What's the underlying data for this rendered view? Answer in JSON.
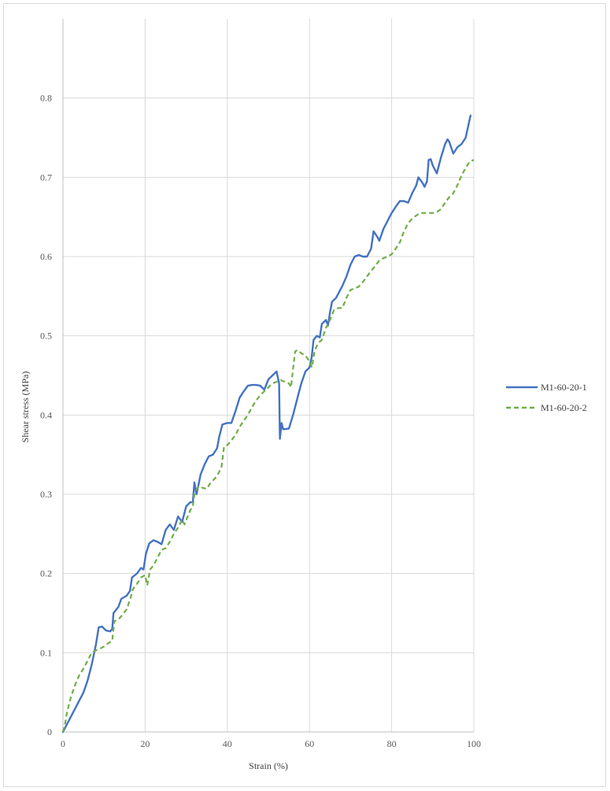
{
  "chart_data": {
    "type": "line",
    "title": "",
    "xlabel": "Strain (%)",
    "ylabel": "Shear stress (MPa)",
    "xlim": [
      0,
      100
    ],
    "ylim": [
      0,
      0.9
    ],
    "x_ticks": [
      0,
      20,
      40,
      60,
      80,
      100
    ],
    "y_ticks": [
      0,
      0.1,
      0.2,
      0.3,
      0.4,
      0.5,
      0.6,
      0.7,
      0.8
    ],
    "y_tick_labels": [
      "0",
      "0.1",
      "0.2",
      "0.3",
      "0.4",
      "0.5",
      "0.6",
      "0.7",
      "0.8"
    ],
    "grid": true,
    "legend_position": "right",
    "series": [
      {
        "name": "M1-60-20-1",
        "color": "#4472c4",
        "dash": "solid",
        "points": [
          [
            0,
            0
          ],
          [
            1,
            0.01
          ],
          [
            2,
            0.02
          ],
          [
            3,
            0.03
          ],
          [
            4,
            0.04
          ],
          [
            5,
            0.05
          ],
          [
            6,
            0.065
          ],
          [
            7,
            0.085
          ],
          [
            8,
            0.11
          ],
          [
            8.7,
            0.132
          ],
          [
            9.5,
            0.133
          ],
          [
            10.5,
            0.128
          ],
          [
            11.5,
            0.127
          ],
          [
            12,
            0.13
          ],
          [
            12.3,
            0.15
          ],
          [
            13.5,
            0.158
          ],
          [
            14.2,
            0.168
          ],
          [
            15.5,
            0.172
          ],
          [
            16.3,
            0.178
          ],
          [
            16.8,
            0.195
          ],
          [
            18,
            0.2
          ],
          [
            19,
            0.207
          ],
          [
            19.6,
            0.205
          ],
          [
            20.2,
            0.225
          ],
          [
            21,
            0.238
          ],
          [
            22,
            0.242
          ],
          [
            23,
            0.24
          ],
          [
            24,
            0.237
          ],
          [
            25,
            0.255
          ],
          [
            26,
            0.262
          ],
          [
            27,
            0.255
          ],
          [
            28,
            0.272
          ],
          [
            29,
            0.265
          ],
          [
            30,
            0.285
          ],
          [
            31,
            0.29
          ],
          [
            31.6,
            0.29
          ],
          [
            32,
            0.315
          ],
          [
            32.5,
            0.3
          ],
          [
            33.5,
            0.325
          ],
          [
            34.5,
            0.338
          ],
          [
            35.5,
            0.348
          ],
          [
            36.5,
            0.35
          ],
          [
            37.5,
            0.358
          ],
          [
            38,
            0.372
          ],
          [
            38.8,
            0.388
          ],
          [
            40,
            0.39
          ],
          [
            41,
            0.39
          ],
          [
            42,
            0.405
          ],
          [
            43,
            0.422
          ],
          [
            44,
            0.43
          ],
          [
            45,
            0.437
          ],
          [
            46,
            0.438
          ],
          [
            47,
            0.438
          ],
          [
            48,
            0.437
          ],
          [
            49,
            0.432
          ],
          [
            50,
            0.445
          ],
          [
            51,
            0.45
          ],
          [
            52,
            0.455
          ],
          [
            52.6,
            0.44
          ],
          [
            52.8,
            0.37
          ],
          [
            53.2,
            0.39
          ],
          [
            53.6,
            0.382
          ],
          [
            55,
            0.383
          ],
          [
            56,
            0.4
          ],
          [
            57,
            0.42
          ],
          [
            58,
            0.44
          ],
          [
            59,
            0.455
          ],
          [
            60,
            0.46
          ],
          [
            60.5,
            0.472
          ],
          [
            61,
            0.495
          ],
          [
            61.8,
            0.5
          ],
          [
            62.5,
            0.498
          ],
          [
            63,
            0.515
          ],
          [
            64,
            0.52
          ],
          [
            64.5,
            0.513
          ],
          [
            65,
            0.53
          ],
          [
            65.5,
            0.543
          ],
          [
            66.5,
            0.548
          ],
          [
            68,
            0.563
          ],
          [
            69,
            0.575
          ],
          [
            70,
            0.59
          ],
          [
            71,
            0.6
          ],
          [
            72,
            0.602
          ],
          [
            73,
            0.6
          ],
          [
            74,
            0.6
          ],
          [
            75,
            0.61
          ],
          [
            75.6,
            0.632
          ],
          [
            76.5,
            0.625
          ],
          [
            77,
            0.62
          ],
          [
            78,
            0.635
          ],
          [
            79,
            0.645
          ],
          [
            80,
            0.655
          ],
          [
            81,
            0.663
          ],
          [
            82,
            0.67
          ],
          [
            83,
            0.67
          ],
          [
            84,
            0.668
          ],
          [
            85,
            0.68
          ],
          [
            86,
            0.69
          ],
          [
            86.5,
            0.7
          ],
          [
            87.5,
            0.693
          ],
          [
            88,
            0.688
          ],
          [
            88.6,
            0.695
          ],
          [
            89,
            0.722
          ],
          [
            89.5,
            0.723
          ],
          [
            90,
            0.715
          ],
          [
            91,
            0.705
          ],
          [
            92,
            0.725
          ],
          [
            93,
            0.742
          ],
          [
            93.6,
            0.748
          ],
          [
            94,
            0.745
          ],
          [
            95,
            0.73
          ],
          [
            96,
            0.738
          ],
          [
            97,
            0.742
          ],
          [
            98,
            0.75
          ],
          [
            99.2,
            0.778
          ]
        ]
      },
      {
        "name": "M1-60-20-2",
        "color": "#70ad47",
        "dash": "dashed",
        "points": [
          [
            0,
            0
          ],
          [
            0.5,
            0.01
          ],
          [
            1,
            0.025
          ],
          [
            2,
            0.045
          ],
          [
            3,
            0.06
          ],
          [
            4,
            0.072
          ],
          [
            5,
            0.08
          ],
          [
            6,
            0.09
          ],
          [
            7,
            0.1
          ],
          [
            8,
            0.103
          ],
          [
            9,
            0.105
          ],
          [
            10,
            0.108
          ],
          [
            11,
            0.112
          ],
          [
            12,
            0.115
          ],
          [
            12.5,
            0.14
          ],
          [
            13.5,
            0.142
          ],
          [
            14.5,
            0.148
          ],
          [
            15.5,
            0.155
          ],
          [
            16.5,
            0.17
          ],
          [
            17,
            0.18
          ],
          [
            18,
            0.187
          ],
          [
            19,
            0.195
          ],
          [
            20,
            0.198
          ],
          [
            20.5,
            0.185
          ],
          [
            21.2,
            0.205
          ],
          [
            22,
            0.21
          ],
          [
            23,
            0.22
          ],
          [
            24,
            0.23
          ],
          [
            25,
            0.232
          ],
          [
            26,
            0.24
          ],
          [
            27,
            0.25
          ],
          [
            28,
            0.258
          ],
          [
            29,
            0.268
          ],
          [
            29.6,
            0.262
          ],
          [
            30.2,
            0.27
          ],
          [
            31,
            0.28
          ],
          [
            31.6,
            0.285
          ],
          [
            32,
            0.3
          ],
          [
            33,
            0.31
          ],
          [
            34,
            0.308
          ],
          [
            35,
            0.307
          ],
          [
            36,
            0.315
          ],
          [
            37,
            0.32
          ],
          [
            38,
            0.328
          ],
          [
            38.6,
            0.335
          ],
          [
            39.2,
            0.36
          ],
          [
            40,
            0.362
          ],
          [
            41,
            0.368
          ],
          [
            42,
            0.375
          ],
          [
            43,
            0.385
          ],
          [
            44,
            0.393
          ],
          [
            45,
            0.4
          ],
          [
            46,
            0.41
          ],
          [
            47,
            0.418
          ],
          [
            48,
            0.425
          ],
          [
            49,
            0.43
          ],
          [
            50,
            0.435
          ],
          [
            51,
            0.44
          ],
          [
            52,
            0.442
          ],
          [
            53,
            0.444
          ],
          [
            54,
            0.442
          ],
          [
            55,
            0.44
          ],
          [
            55.5,
            0.435
          ],
          [
            56,
            0.458
          ],
          [
            56.5,
            0.48
          ],
          [
            57,
            0.482
          ],
          [
            58,
            0.478
          ],
          [
            59,
            0.475
          ],
          [
            60,
            0.468
          ],
          [
            60.6,
            0.46
          ],
          [
            61.2,
            0.48
          ],
          [
            62,
            0.49
          ],
          [
            63,
            0.495
          ],
          [
            64,
            0.51
          ],
          [
            65,
            0.52
          ],
          [
            66,
            0.533
          ],
          [
            67,
            0.535
          ],
          [
            68,
            0.535
          ],
          [
            69,
            0.548
          ],
          [
            70,
            0.558
          ],
          [
            71,
            0.56
          ],
          [
            72,
            0.562
          ],
          [
            73,
            0.568
          ],
          [
            74,
            0.575
          ],
          [
            75,
            0.582
          ],
          [
            76,
            0.588
          ],
          [
            77,
            0.595
          ],
          [
            78,
            0.598
          ],
          [
            79,
            0.6
          ],
          [
            80,
            0.603
          ],
          [
            81,
            0.61
          ],
          [
            82,
            0.618
          ],
          [
            83,
            0.632
          ],
          [
            84,
            0.642
          ],
          [
            85,
            0.648
          ],
          [
            86,
            0.652
          ],
          [
            87,
            0.655
          ],
          [
            88,
            0.655
          ],
          [
            89,
            0.655
          ],
          [
            90,
            0.655
          ],
          [
            91,
            0.656
          ],
          [
            92,
            0.66
          ],
          [
            93,
            0.668
          ],
          [
            94,
            0.675
          ],
          [
            95,
            0.68
          ],
          [
            96,
            0.69
          ],
          [
            97,
            0.702
          ],
          [
            98,
            0.712
          ],
          [
            99,
            0.72
          ],
          [
            100,
            0.722
          ]
        ]
      }
    ]
  }
}
